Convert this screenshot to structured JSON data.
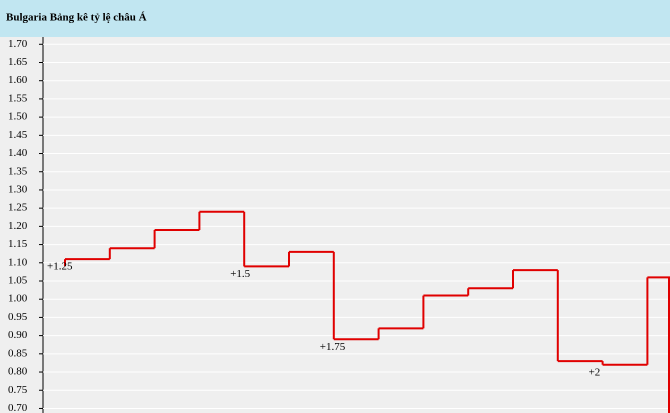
{
  "chart_data": {
    "type": "step",
    "title": "Bulgaria Bảng kê tỷ lệ châu Á",
    "values": [
      1.11,
      1.14,
      1.19,
      1.24,
      1.09,
      1.13,
      0.89,
      0.92,
      1.01,
      1.03,
      1.08,
      0.83,
      0.82,
      1.06
    ],
    "annotations": [
      "+1.25",
      null,
      null,
      null,
      "+1.5",
      null,
      "+1.75",
      null,
      null,
      null,
      null,
      null,
      "+2",
      null
    ],
    "color": "#e00000",
    "ylim": [
      0.6875,
      1.72
    ],
    "yticks": [
      {
        "value": 1.7,
        "label": "1.70"
      },
      1.65,
      {
        "value": 1.6,
        "label": "1.60"
      },
      1.55,
      {
        "value": 1.5,
        "label": "1.50"
      },
      1.45,
      {
        "value": 1.4,
        "label": "1.40"
      },
      1.35,
      {
        "value": 1.3,
        "label": "1.30"
      },
      1.25,
      {
        "value": 1.2,
        "label": "1.20"
      },
      1.15,
      {
        "value": 1.1,
        "label": "1.10"
      },
      1.05,
      {
        "value": 1.0,
        "label": "1.00"
      },
      0.95,
      {
        "value": 0.9,
        "label": "0.90"
      },
      0.85,
      {
        "value": 0.8,
        "label": "0.80"
      },
      0.75,
      {
        "value": 0.7,
        "label": "0.70"
      }
    ],
    "grid": true
  }
}
